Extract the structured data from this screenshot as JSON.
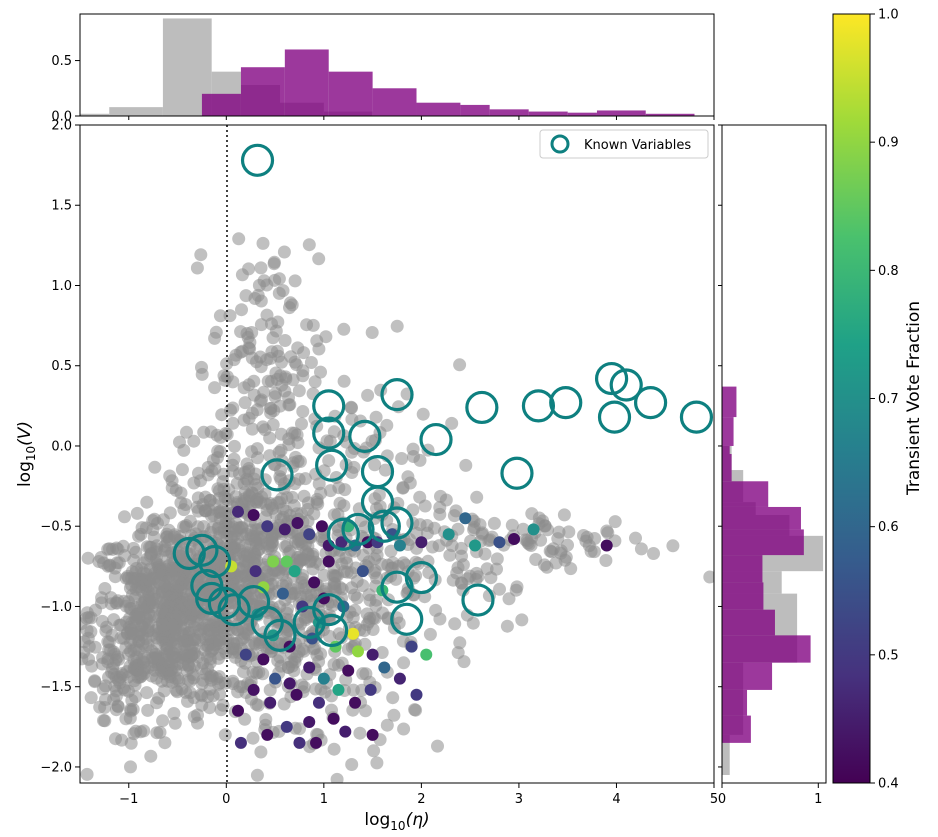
{
  "chart_data": {
    "type": "scatter",
    "xlabel_base": "log",
    "xlabel_sub": "10",
    "xlabel_var": "(η)",
    "ylabel_base": "log",
    "ylabel_sub": "10",
    "ylabel_var": "(V)",
    "xlim": [
      -1.5,
      5.0
    ],
    "ylim": [
      -2.1,
      2.0
    ],
    "x_ticks": [
      -1,
      0,
      1,
      2,
      3,
      4,
      5
    ],
    "x_tick_labels": [
      "−1",
      "0",
      "1",
      "2",
      "3",
      "4",
      "5"
    ],
    "y_ticks": [
      -2.0,
      -1.5,
      -1.0,
      -0.5,
      0.0,
      0.5,
      1.0,
      1.5,
      2.0
    ],
    "y_tick_labels": [
      "−2.0",
      "−1.5",
      "−1.0",
      "−0.5",
      "0.0",
      "0.5",
      "1.0",
      "1.5",
      "2.0"
    ],
    "legend": {
      "label": "Known Variables",
      "placement": "upper right"
    },
    "vline_x": 0,
    "colorbar": {
      "label": "Transient Vote Fraction",
      "colormap": "viridis",
      "range": [
        0.4,
        1.0
      ],
      "ticks": [
        0.4,
        0.5,
        0.6,
        0.7,
        0.8,
        0.9,
        1.0
      ],
      "tick_labels": [
        "0.4",
        "0.5",
        "0.6",
        "0.7",
        "0.8",
        "0.9",
        "1.0"
      ]
    },
    "top_histogram": {
      "y_ticks": [
        0.0,
        0.5
      ],
      "y_tick_labels": [
        "0.0",
        "0.5"
      ],
      "ylim": [
        0,
        0.92
      ],
      "gray": [
        {
          "x0": -1.5,
          "x1": -1.2,
          "h": 0.02
        },
        {
          "x0": -1.2,
          "x1": -0.65,
          "h": 0.08
        },
        {
          "x0": -0.65,
          "x1": -0.15,
          "h": 0.88
        },
        {
          "x0": -0.15,
          "x1": 0.15,
          "h": 0.4
        },
        {
          "x0": 0.15,
          "x1": 0.55,
          "h": 0.28
        },
        {
          "x0": 0.55,
          "x1": 1.0,
          "h": 0.12
        },
        {
          "x0": 1.0,
          "x1": 1.5,
          "h": 0.04
        }
      ],
      "purple": [
        {
          "x0": -0.25,
          "x1": 0.15,
          "h": 0.2
        },
        {
          "x0": 0.15,
          "x1": 0.6,
          "h": 0.44
        },
        {
          "x0": 0.6,
          "x1": 1.05,
          "h": 0.6
        },
        {
          "x0": 1.05,
          "x1": 1.5,
          "h": 0.4
        },
        {
          "x0": 1.5,
          "x1": 1.95,
          "h": 0.25
        },
        {
          "x0": 1.95,
          "x1": 2.4,
          "h": 0.12
        },
        {
          "x0": 2.4,
          "x1": 2.7,
          "h": 0.1
        },
        {
          "x0": 2.7,
          "x1": 3.1,
          "h": 0.06
        },
        {
          "x0": 3.1,
          "x1": 3.5,
          "h": 0.04
        },
        {
          "x0": 3.5,
          "x1": 3.8,
          "h": 0.03
        },
        {
          "x0": 3.8,
          "x1": 4.3,
          "h": 0.05
        },
        {
          "x0": 4.3,
          "x1": 4.8,
          "h": 0.02
        }
      ]
    },
    "right_histogram": {
      "x_ticks": [
        0,
        1
      ],
      "x_tick_labels": [
        "0",
        "1"
      ],
      "xlim": [
        0,
        1.08
      ],
      "gray": [
        {
          "y0": -2.05,
          "y1": -1.8,
          "w": 0.08
        },
        {
          "y0": -1.8,
          "y1": -1.35,
          "w": 0.22
        },
        {
          "y0": -1.35,
          "y1": -0.92,
          "w": 0.78
        },
        {
          "y0": -0.92,
          "y1": -0.78,
          "w": 0.62
        },
        {
          "y0": -0.78,
          "y1": -0.56,
          "w": 1.05
        },
        {
          "y0": -0.56,
          "y1": -0.43,
          "w": 0.7
        },
        {
          "y0": -0.43,
          "y1": -0.35,
          "w": 0.35
        },
        {
          "y0": -0.35,
          "y1": -0.15,
          "w": 0.22
        },
        {
          "y0": -0.15,
          "y1": 0.0,
          "w": 0.1
        }
      ],
      "purple": [
        {
          "y0": -1.85,
          "y1": -1.68,
          "w": 0.3
        },
        {
          "y0": -1.68,
          "y1": -1.52,
          "w": 0.26
        },
        {
          "y0": -1.52,
          "y1": -1.35,
          "w": 0.52
        },
        {
          "y0": -1.35,
          "y1": -1.18,
          "w": 0.92
        },
        {
          "y0": -1.18,
          "y1": -1.02,
          "w": 0.55
        },
        {
          "y0": -1.02,
          "y1": -0.85,
          "w": 0.43
        },
        {
          "y0": -0.85,
          "y1": -0.68,
          "w": 0.42
        },
        {
          "y0": -0.68,
          "y1": -0.52,
          "w": 0.85
        },
        {
          "y0": -0.52,
          "y1": -0.38,
          "w": 0.82
        },
        {
          "y0": -0.38,
          "y1": -0.22,
          "w": 0.48
        },
        {
          "y0": -0.22,
          "y1": -0.05,
          "w": 0.1
        },
        {
          "y0": -0.05,
          "y1": 0.0,
          "w": 0.08
        },
        {
          "y0": 0.0,
          "y1": 0.18,
          "w": 0.12
        },
        {
          "y0": 0.18,
          "y1": 0.37,
          "w": 0.15
        }
      ]
    },
    "known_variables": [
      [
        0.32,
        1.78
      ],
      [
        1.05,
        0.25
      ],
      [
        1.05,
        0.08
      ],
      [
        1.08,
        -0.12
      ],
      [
        1.75,
        0.32
      ],
      [
        1.42,
        0.06
      ],
      [
        2.15,
        0.04
      ],
      [
        0.52,
        -0.18
      ],
      [
        1.55,
        -0.16
      ],
      [
        1.55,
        -0.35
      ],
      [
        1.75,
        -0.48
      ],
      [
        1.35,
        -0.52
      ],
      [
        2.62,
        0.24
      ],
      [
        3.2,
        0.25
      ],
      [
        3.48,
        0.27
      ],
      [
        2.98,
        -0.17
      ],
      [
        3.95,
        0.42
      ],
      [
        4.1,
        0.38
      ],
      [
        3.98,
        0.18
      ],
      [
        4.35,
        0.27
      ],
      [
        4.82,
        0.18
      ],
      [
        -0.38,
        -0.67
      ],
      [
        -0.25,
        -0.65
      ],
      [
        -0.12,
        -0.72
      ],
      [
        -0.2,
        -0.87
      ],
      [
        -0.15,
        -0.95
      ],
      [
        -0.02,
        -0.98
      ],
      [
        0.08,
        -1.02
      ],
      [
        0.28,
        -0.97
      ],
      [
        0.42,
        -1.1
      ],
      [
        0.55,
        -1.18
      ],
      [
        0.85,
        -1.1
      ],
      [
        1.05,
        -1.02
      ],
      [
        1.08,
        -1.15
      ],
      [
        1.75,
        -0.88
      ],
      [
        1.85,
        -1.08
      ],
      [
        2.0,
        -0.82
      ],
      [
        2.58,
        -0.96
      ],
      [
        1.2,
        -0.55
      ],
      [
        1.62,
        -0.5
      ]
    ],
    "transient_candidates": [
      [
        0.05,
        -0.75,
        0.95
      ],
      [
        0.62,
        -0.72,
        0.85
      ],
      [
        0.28,
        -0.43,
        0.42
      ],
      [
        0.42,
        -0.5,
        0.5
      ],
      [
        0.6,
        -0.52,
        0.45
      ],
      [
        0.73,
        -0.48,
        0.43
      ],
      [
        0.85,
        -0.55,
        0.52
      ],
      [
        0.98,
        -0.5,
        0.42
      ],
      [
        1.05,
        -0.62,
        0.44
      ],
      [
        1.18,
        -0.6,
        0.47
      ],
      [
        1.25,
        -0.5,
        0.78
      ],
      [
        1.32,
        -0.62,
        0.6
      ],
      [
        1.45,
        -0.6,
        0.42
      ],
      [
        1.55,
        -0.6,
        0.5
      ],
      [
        1.7,
        -0.55,
        0.55
      ],
      [
        1.78,
        -0.62,
        0.66
      ],
      [
        2.0,
        -0.6,
        0.45
      ],
      [
        2.28,
        -0.55,
        0.7
      ],
      [
        2.45,
        -0.45,
        0.6
      ],
      [
        2.55,
        -0.62,
        0.72
      ],
      [
        2.8,
        -0.6,
        0.55
      ],
      [
        2.95,
        -0.58,
        0.42
      ],
      [
        3.15,
        -0.52,
        0.7
      ],
      [
        3.9,
        -0.62,
        0.42
      ],
      [
        0.12,
        -0.41,
        0.47
      ],
      [
        0.48,
        -0.72,
        0.88
      ],
      [
        0.7,
        -0.78,
        0.75
      ],
      [
        0.9,
        -0.85,
        0.42
      ],
      [
        0.58,
        -0.92,
        0.58
      ],
      [
        0.38,
        -0.88,
        0.9
      ],
      [
        0.78,
        -1.0,
        0.5
      ],
      [
        1.0,
        -0.95,
        0.42
      ],
      [
        1.2,
        -1.0,
        0.6
      ],
      [
        0.32,
        -1.05,
        0.7
      ],
      [
        0.48,
        -1.18,
        0.72
      ],
      [
        0.65,
        -1.25,
        0.42
      ],
      [
        0.88,
        -1.2,
        0.55
      ],
      [
        1.12,
        -1.25,
        0.85
      ],
      [
        1.3,
        -1.17,
        0.98
      ],
      [
        1.35,
        -1.28,
        0.9
      ],
      [
        1.5,
        -1.3,
        0.45
      ],
      [
        1.25,
        -1.4,
        0.42
      ],
      [
        1.0,
        -1.45,
        0.66
      ],
      [
        0.85,
        -1.38,
        0.45
      ],
      [
        0.65,
        -1.48,
        0.44
      ],
      [
        0.5,
        -1.45,
        0.56
      ],
      [
        0.38,
        -1.33,
        0.42
      ],
      [
        0.2,
        -1.3,
        0.52
      ],
      [
        0.28,
        -1.52,
        0.43
      ],
      [
        0.45,
        -1.6,
        0.45
      ],
      [
        0.72,
        -1.55,
        0.42
      ],
      [
        0.95,
        -1.6,
        0.48
      ],
      [
        1.15,
        -1.52,
        0.75
      ],
      [
        1.32,
        -1.6,
        0.42
      ],
      [
        1.48,
        -1.52,
        0.5
      ],
      [
        1.62,
        -1.38,
        0.6
      ],
      [
        1.78,
        -1.45,
        0.46
      ],
      [
        1.9,
        -1.25,
        0.52
      ],
      [
        2.05,
        -1.3,
        0.82
      ],
      [
        1.95,
        -1.55,
        0.5
      ],
      [
        1.1,
        -1.7,
        0.42
      ],
      [
        0.85,
        -1.72,
        0.44
      ],
      [
        0.62,
        -1.75,
        0.5
      ],
      [
        0.42,
        -1.8,
        0.42
      ],
      [
        0.75,
        -1.85,
        0.48
      ],
      [
        0.92,
        -1.85,
        0.42
      ],
      [
        1.22,
        -1.78,
        0.45
      ],
      [
        1.5,
        -1.8,
        0.42
      ],
      [
        0.15,
        -1.85,
        0.48
      ],
      [
        0.12,
        -1.65,
        0.42
      ],
      [
        0.3,
        -0.78,
        0.48
      ],
      [
        1.4,
        -0.78,
        0.55
      ],
      [
        0.95,
        -1.1,
        0.72
      ],
      [
        1.05,
        -0.72,
        0.42
      ],
      [
        1.6,
        -0.9,
        0.8
      ]
    ]
  }
}
